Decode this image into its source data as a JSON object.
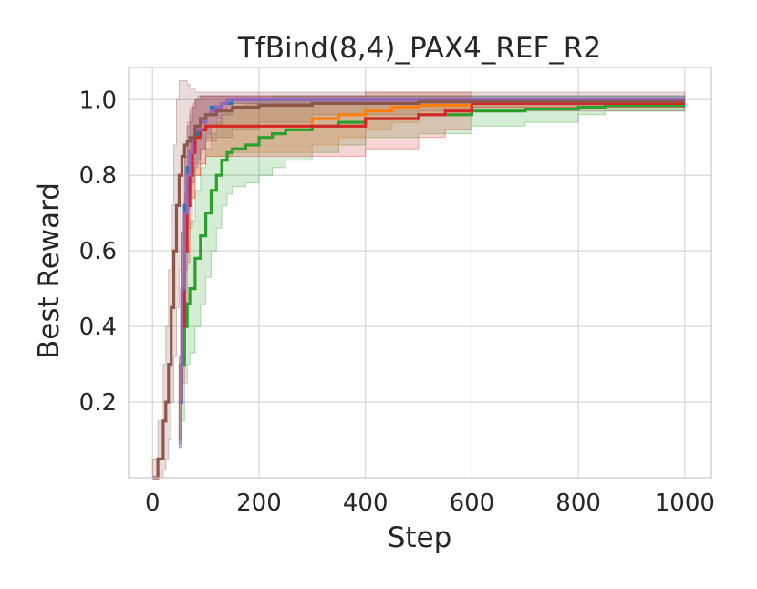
{
  "chart_data": {
    "type": "line",
    "title": "TfBind(8,4)_PAX4_REF_R2",
    "xlabel": "Step",
    "ylabel": "Best Reward",
    "xlim": [
      -45,
      1050
    ],
    "ylim": [
      0.0,
      1.085
    ],
    "xticks": [
      0,
      200,
      400,
      600,
      800,
      1000
    ],
    "yticks": [
      0.2,
      0.4,
      0.6,
      0.8,
      1.0
    ],
    "xtick_labels": [
      "0",
      "200",
      "400",
      "600",
      "800",
      "1000"
    ],
    "ytick_labels": [
      "0.2",
      "0.4",
      "0.6",
      "0.8",
      "1.0"
    ],
    "grid": true,
    "legend": "none",
    "series": [
      {
        "color": "#1f77b4",
        "x": [
          50,
          55,
          60,
          65,
          70,
          75,
          80,
          85,
          90,
          100,
          110,
          130,
          150,
          200,
          300,
          500,
          1000
        ],
        "y": [
          0.2,
          0.5,
          0.72,
          0.82,
          0.86,
          0.88,
          0.9,
          0.92,
          0.94,
          0.96,
          0.98,
          0.99,
          1.0,
          1.0,
          1.0,
          1.0,
          1.0
        ],
        "upper": [
          0.32,
          0.65,
          0.85,
          0.93,
          0.96,
          0.98,
          1.0,
          1.01,
          1.01,
          1.01,
          1.01,
          1.01,
          1.01,
          1.01,
          1.01,
          1.01,
          1.01
        ],
        "lower": [
          0.08,
          0.35,
          0.6,
          0.72,
          0.78,
          0.8,
          0.82,
          0.84,
          0.87,
          0.9,
          0.93,
          0.96,
          0.99,
          0.99,
          0.99,
          0.99,
          0.99
        ]
      },
      {
        "color": "#ff7f0e",
        "x": [
          50,
          55,
          60,
          65,
          70,
          80,
          90,
          100,
          150,
          200,
          250,
          300,
          350,
          400,
          450,
          500,
          600,
          700,
          800,
          1000
        ],
        "y": [
          0.2,
          0.5,
          0.7,
          0.8,
          0.86,
          0.9,
          0.92,
          0.93,
          0.93,
          0.93,
          0.93,
          0.95,
          0.96,
          0.97,
          0.98,
          0.985,
          0.99,
          0.99,
          0.99,
          0.99
        ],
        "upper": [
          0.3,
          0.65,
          0.85,
          0.94,
          0.98,
          1.0,
          1.01,
          1.01,
          1.01,
          1.01,
          1.01,
          1.01,
          1.01,
          1.01,
          1.01,
          1.01,
          1.0,
          1.0,
          1.0,
          1.0
        ],
        "lower": [
          0.1,
          0.35,
          0.55,
          0.66,
          0.74,
          0.8,
          0.83,
          0.85,
          0.86,
          0.86,
          0.86,
          0.88,
          0.9,
          0.92,
          0.94,
          0.96,
          0.98,
          0.98,
          0.98,
          0.98
        ]
      },
      {
        "color": "#2ca02c",
        "x": [
          50,
          55,
          60,
          65,
          70,
          80,
          90,
          100,
          110,
          120,
          130,
          140,
          150,
          175,
          200,
          225,
          250,
          300,
          350,
          400,
          500,
          600,
          700,
          800,
          850,
          1000
        ],
        "y": [
          0.2,
          0.3,
          0.4,
          0.46,
          0.5,
          0.58,
          0.64,
          0.7,
          0.76,
          0.8,
          0.84,
          0.86,
          0.87,
          0.88,
          0.9,
          0.91,
          0.92,
          0.93,
          0.94,
          0.95,
          0.96,
          0.97,
          0.975,
          0.98,
          0.985,
          0.985
        ],
        "upper": [
          0.3,
          0.45,
          0.55,
          0.62,
          0.68,
          0.76,
          0.82,
          0.87,
          0.91,
          0.94,
          0.96,
          0.97,
          0.98,
          0.99,
          1.0,
          1.01,
          1.01,
          1.01,
          1.01,
          1.01,
          1.01,
          1.01,
          1.01,
          1.01,
          1.01,
          1.01
        ],
        "lower": [
          0.1,
          0.15,
          0.25,
          0.3,
          0.33,
          0.4,
          0.46,
          0.53,
          0.6,
          0.66,
          0.72,
          0.75,
          0.77,
          0.78,
          0.8,
          0.82,
          0.84,
          0.86,
          0.88,
          0.9,
          0.91,
          0.93,
          0.94,
          0.96,
          0.97,
          0.97
        ]
      },
      {
        "color": "#d62728",
        "x": [
          50,
          55,
          60,
          65,
          70,
          75,
          80,
          90,
          100,
          120,
          150,
          200,
          300,
          380,
          400,
          500,
          550,
          600,
          800,
          1000
        ],
        "y": [
          0.2,
          0.4,
          0.6,
          0.72,
          0.8,
          0.86,
          0.9,
          0.92,
          0.93,
          0.93,
          0.93,
          0.93,
          0.93,
          0.93,
          0.95,
          0.96,
          0.97,
          0.99,
          0.99,
          0.99
        ],
        "upper": [
          0.3,
          0.55,
          0.75,
          0.87,
          0.94,
          0.98,
          1.0,
          1.01,
          1.01,
          1.01,
          1.01,
          1.01,
          1.01,
          1.01,
          1.02,
          1.02,
          1.02,
          1.0,
          1.0,
          1.0
        ],
        "lower": [
          0.09,
          0.25,
          0.45,
          0.57,
          0.66,
          0.74,
          0.8,
          0.83,
          0.85,
          0.85,
          0.85,
          0.85,
          0.85,
          0.85,
          0.87,
          0.9,
          0.92,
          0.98,
          0.98,
          0.98
        ]
      },
      {
        "color": "#9467bd",
        "x": [
          50,
          55,
          60,
          65,
          70,
          75,
          80,
          90,
          100,
          110,
          120,
          130,
          140,
          200,
          500,
          1000
        ],
        "y": [
          0.2,
          0.5,
          0.7,
          0.8,
          0.86,
          0.9,
          0.92,
          0.94,
          0.96,
          0.97,
          0.98,
          0.99,
          1.0,
          1.0,
          1.0,
          1.0
        ],
        "upper": [
          0.32,
          0.65,
          0.85,
          0.93,
          0.97,
          0.99,
          1.0,
          1.01,
          1.01,
          1.01,
          1.01,
          1.01,
          1.01,
          1.01,
          1.01,
          1.01
        ],
        "lower": [
          0.08,
          0.35,
          0.55,
          0.67,
          0.75,
          0.81,
          0.84,
          0.87,
          0.91,
          0.93,
          0.95,
          0.97,
          0.99,
          0.99,
          0.99,
          0.99
        ]
      },
      {
        "color": "#8c564b",
        "x": [
          0,
          10,
          20,
          25,
          30,
          35,
          40,
          45,
          50,
          55,
          60,
          65,
          70,
          80,
          90,
          100,
          120,
          150,
          200,
          300,
          500,
          1000
        ],
        "y": [
          0.0,
          0.05,
          0.15,
          0.2,
          0.3,
          0.45,
          0.6,
          0.72,
          0.8,
          0.85,
          0.88,
          0.89,
          0.9,
          0.93,
          0.95,
          0.96,
          0.97,
          0.98,
          0.985,
          0.99,
          0.995,
          0.995
        ],
        "upper": [
          0.05,
          0.15,
          0.3,
          0.4,
          0.55,
          0.72,
          0.88,
          1.0,
          1.05,
          1.05,
          1.05,
          1.04,
          1.03,
          1.02,
          1.02,
          1.02,
          1.02,
          1.02,
          1.02,
          1.02,
          1.02,
          1.01
        ],
        "lower": [
          0.0,
          0.0,
          0.02,
          0.05,
          0.1,
          0.2,
          0.32,
          0.45,
          0.55,
          0.65,
          0.72,
          0.75,
          0.78,
          0.83,
          0.87,
          0.89,
          0.9,
          0.92,
          0.94,
          0.96,
          0.97,
          0.98
        ]
      }
    ]
  }
}
